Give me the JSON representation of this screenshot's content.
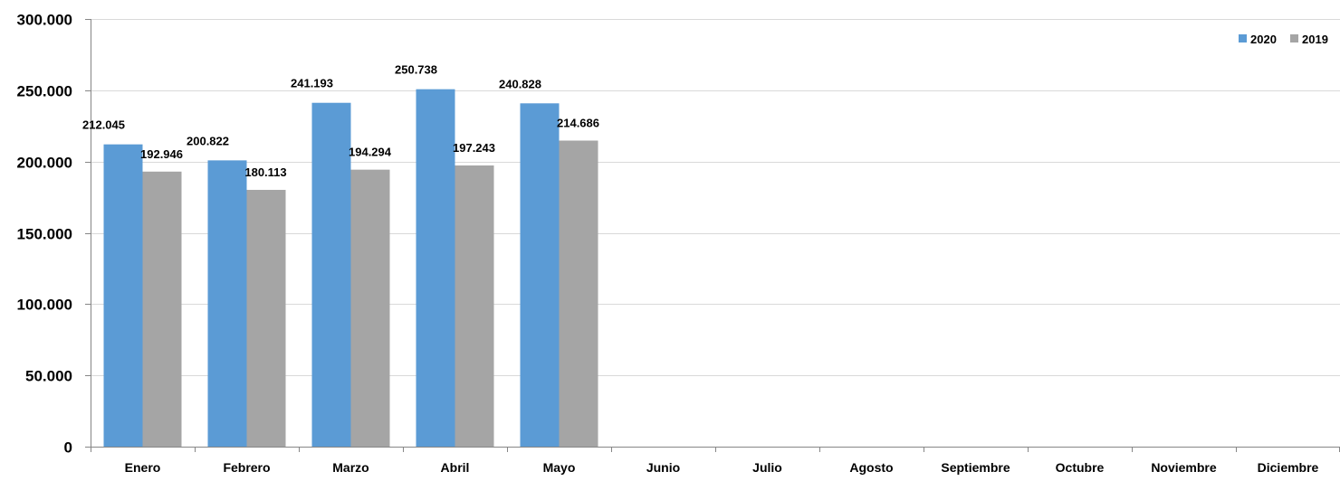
{
  "chart_data": {
    "type": "bar",
    "title": "",
    "xlabel": "",
    "ylabel": "",
    "categories": [
      "Enero",
      "Febrero",
      "Marzo",
      "Abril",
      "Mayo",
      "Junio",
      "Julio",
      "Agosto",
      "Septiembre",
      "Octubre",
      "Noviembre",
      "Diciembre"
    ],
    "series": [
      {
        "name": "2020",
        "color": "#5B9BD5",
        "values": [
          212045,
          200822,
          241193,
          250738,
          240828,
          null,
          null,
          null,
          null,
          null,
          null,
          null
        ],
        "labels": [
          "212.045",
          "200.822",
          "241.193",
          "250.738",
          "240.828",
          null,
          null,
          null,
          null,
          null,
          null,
          null
        ]
      },
      {
        "name": "2019",
        "color": "#A5A5A5",
        "values": [
          192946,
          180113,
          194294,
          197243,
          214686,
          null,
          null,
          null,
          null,
          null,
          null,
          null
        ],
        "labels": [
          "192.946",
          "180.113",
          "194.294",
          "197.243",
          "214.686",
          null,
          null,
          null,
          null,
          null,
          null,
          null
        ]
      }
    ],
    "ylim": [
      0,
      300000
    ],
    "yticks": [
      0,
      50000,
      100000,
      150000,
      200000,
      250000,
      300000
    ],
    "ytick_labels": [
      "0",
      "50.000",
      "100.000",
      "150.000",
      "200.000",
      "250.000",
      "300.000"
    ],
    "grid": true,
    "legend_position": "top-right"
  }
}
